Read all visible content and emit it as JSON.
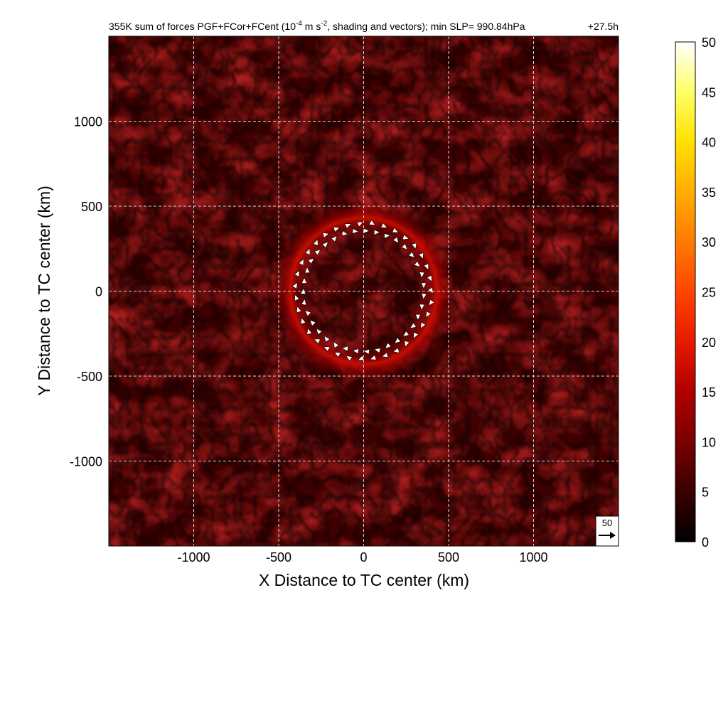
{
  "chart_data": {
    "type": "heatmap",
    "title": {
      "prefix": "355K sum of forces PGF+FCor+FCent (10",
      "sup1": "-4",
      "mid": " m s",
      "sup2": "-2",
      "suffix": ", shading and vectors); min SLP= 990.84hPa"
    },
    "time_label": "+27.5h",
    "xlabel": "X Distance to TC center (km)",
    "ylabel": "Y Distance to TC center (km)",
    "xlim": [
      -1500,
      1500
    ],
    "ylim": [
      -1500,
      1500
    ],
    "xticks": [
      -1000,
      -500,
      0,
      500,
      1000
    ],
    "yticks": [
      -1000,
      -500,
      0,
      500,
      1000
    ],
    "xtick_labels": [
      "-1000",
      "-500",
      "0",
      "500",
      "1000"
    ],
    "ytick_labels": [
      "-1000",
      "-500",
      "0",
      "500",
      "1000"
    ],
    "grid": true,
    "field": {
      "ring_center": [
        0,
        0
      ],
      "ring_radius_km": 430,
      "ring_peak_value": 13,
      "background_value": 4
    },
    "colorbar": {
      "min": 0,
      "max": 50,
      "tick_labels": [
        "0",
        "5",
        "10",
        "15",
        "20",
        "25",
        "30",
        "35",
        "40",
        "45",
        "50"
      ],
      "colors": [
        "#000000",
        "#3a0000",
        "#7a0000",
        "#b00000",
        "#e61a00",
        "#ff4500",
        "#ff7a00",
        "#ffad00",
        "#ffe000",
        "#ffff66",
        "#ffffff"
      ]
    },
    "reference_vector": {
      "label": "50",
      "value": 50
    },
    "vector_ring": {
      "radius_km": 400,
      "count": 70
    }
  }
}
